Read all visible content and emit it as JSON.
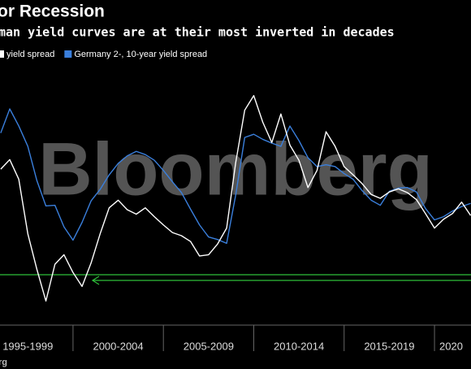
{
  "chart_data": {
    "type": "line",
    "title": "or Recession",
    "subtitle": "man yield curves are at their most inverted in decades",
    "watermark": "Bloomberg",
    "source": "rg",
    "x_labels": [
      "1995-1999",
      "2000-2004",
      "2005-2009",
      "2010-2014",
      "2015-2019",
      "2020"
    ],
    "x": [
      1996,
      1996.5,
      1997,
      1997.5,
      1998,
      1998.5,
      1999,
      1999.5,
      2000,
      2000.5,
      2001,
      2001.5,
      2002,
      2002.5,
      2003,
      2003.5,
      2004,
      2004.5,
      2005,
      2005.5,
      2006,
      2006.5,
      2007,
      2007.5,
      2008,
      2008.5,
      2009,
      2009.5,
      2010,
      2010.5,
      2011,
      2011.5,
      2012,
      2012.5,
      2013,
      2013.5,
      2014,
      2014.5,
      2015,
      2015.5,
      2016,
      2016.5,
      2017,
      2017.5,
      2018,
      2018.5,
      2019,
      2019.5,
      2020,
      2020.5,
      2021,
      2021.5,
      2022
    ],
    "xlim": [
      1995.96,
      2022.02
    ],
    "ylim": [
      -0.88,
      3.03
    ],
    "series": [
      {
        "name": "yield spread",
        "color": "#ffffff",
        "values": [
          1.58,
          1.73,
          1.42,
          0.56,
          0.0,
          -0.5,
          0.08,
          0.23,
          -0.05,
          -0.27,
          0.1,
          0.56,
          0.97,
          1.09,
          0.94,
          0.87,
          0.97,
          0.83,
          0.7,
          0.58,
          0.53,
          0.44,
          0.21,
          0.23,
          0.4,
          0.65,
          1.68,
          2.51,
          2.74,
          2.32,
          2.0,
          2.45,
          1.96,
          1.72,
          1.29,
          1.56,
          2.17,
          1.94,
          1.62,
          1.49,
          1.35,
          1.18,
          1.12,
          1.22,
          1.27,
          1.21,
          1.1,
          0.88,
          0.65,
          0.79,
          0.88,
          1.06,
          0.85
        ]
      },
      {
        "name": "Germany 2-, 10-year yield spread",
        "color": "#3a7fdc",
        "values": [
          2.15,
          2.53,
          2.26,
          1.94,
          1.4,
          1.0,
          1.01,
          0.67,
          0.46,
          0.74,
          1.08,
          1.26,
          1.49,
          1.67,
          1.79,
          1.86,
          1.81,
          1.72,
          1.56,
          1.38,
          1.21,
          0.95,
          0.7,
          0.51,
          0.47,
          0.41,
          1.17,
          2.08,
          2.13,
          2.05,
          1.99,
          1.94,
          2.26,
          2.03,
          1.76,
          1.62,
          1.65,
          1.62,
          1.51,
          1.42,
          1.24,
          1.09,
          1.01,
          1.23,
          1.28,
          1.29,
          1.22,
          0.96,
          0.78,
          0.83,
          0.92,
          0.99,
          1.04
        ]
      }
    ]
  }
}
